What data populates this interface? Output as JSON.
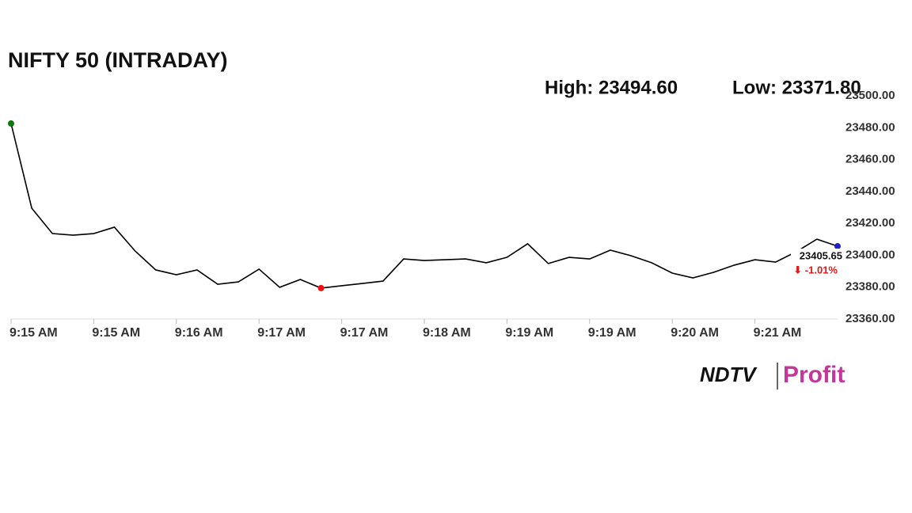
{
  "chart_data": {
    "type": "line",
    "title": "NIFTY 50 (INTRADAY)",
    "high": "High: 23494.60",
    "low": "Low: 23371.80",
    "categories": [
      "9:15 AM",
      null,
      null,
      null,
      "9:15 AM",
      null,
      null,
      null,
      "9:16 AM",
      null,
      null,
      null,
      "9:17 AM",
      null,
      null,
      null,
      "9:17 AM",
      null,
      null,
      null,
      "9:18 AM",
      null,
      null,
      null,
      "9:19 AM",
      null,
      null,
      null,
      "9:19 AM",
      null,
      null,
      null,
      "9:20 AM",
      null,
      null,
      null,
      "9:21 AM",
      null,
      null,
      null,
      null
    ],
    "values": [
      23482.6,
      23429.5,
      23413.6,
      23412.6,
      23413.6,
      23417.6,
      23402.7,
      23390.8,
      23387.8,
      23390.8,
      23381.8,
      23383.3,
      23391.3,
      23379.9,
      23384.8,
      23379.4,
      23380.9,
      23382.3,
      23383.8,
      23397.7,
      23396.7,
      23397.2,
      23397.7,
      23395.3,
      23398.7,
      23407.2,
      23394.8,
      23398.7,
      23397.7,
      23403.2,
      23399.7,
      23395.3,
      23388.8,
      23385.8,
      23389.3,
      23393.8,
      23397.2,
      23395.7,
      23402.2,
      23410.1,
      23405.65
    ],
    "color": "#000000",
    "start_color": "#0a7a0a",
    "low_color": "#ee1111",
    "end_color": "#1f1fcc",
    "last_label": "23405.65",
    "change_label": "⬇ -1.01%",
    "ylim": [
      23360,
      23500
    ],
    "yticks": [
      {
        "value": 23360,
        "label": "23360.00"
      },
      {
        "value": 23380,
        "label": "23380.00"
      },
      {
        "value": 23400,
        "label": "23400.00"
      },
      {
        "value": 23420,
        "label": "23420.00"
      },
      {
        "value": 23440,
        "label": "23440.00"
      },
      {
        "value": 23460,
        "label": "23460.00"
      },
      {
        "value": 23480,
        "label": "23480.00"
      },
      {
        "value": 23500,
        "label": "23500.00"
      }
    ],
    "logo_left": "NDTV",
    "logo_right": "Profit"
  }
}
